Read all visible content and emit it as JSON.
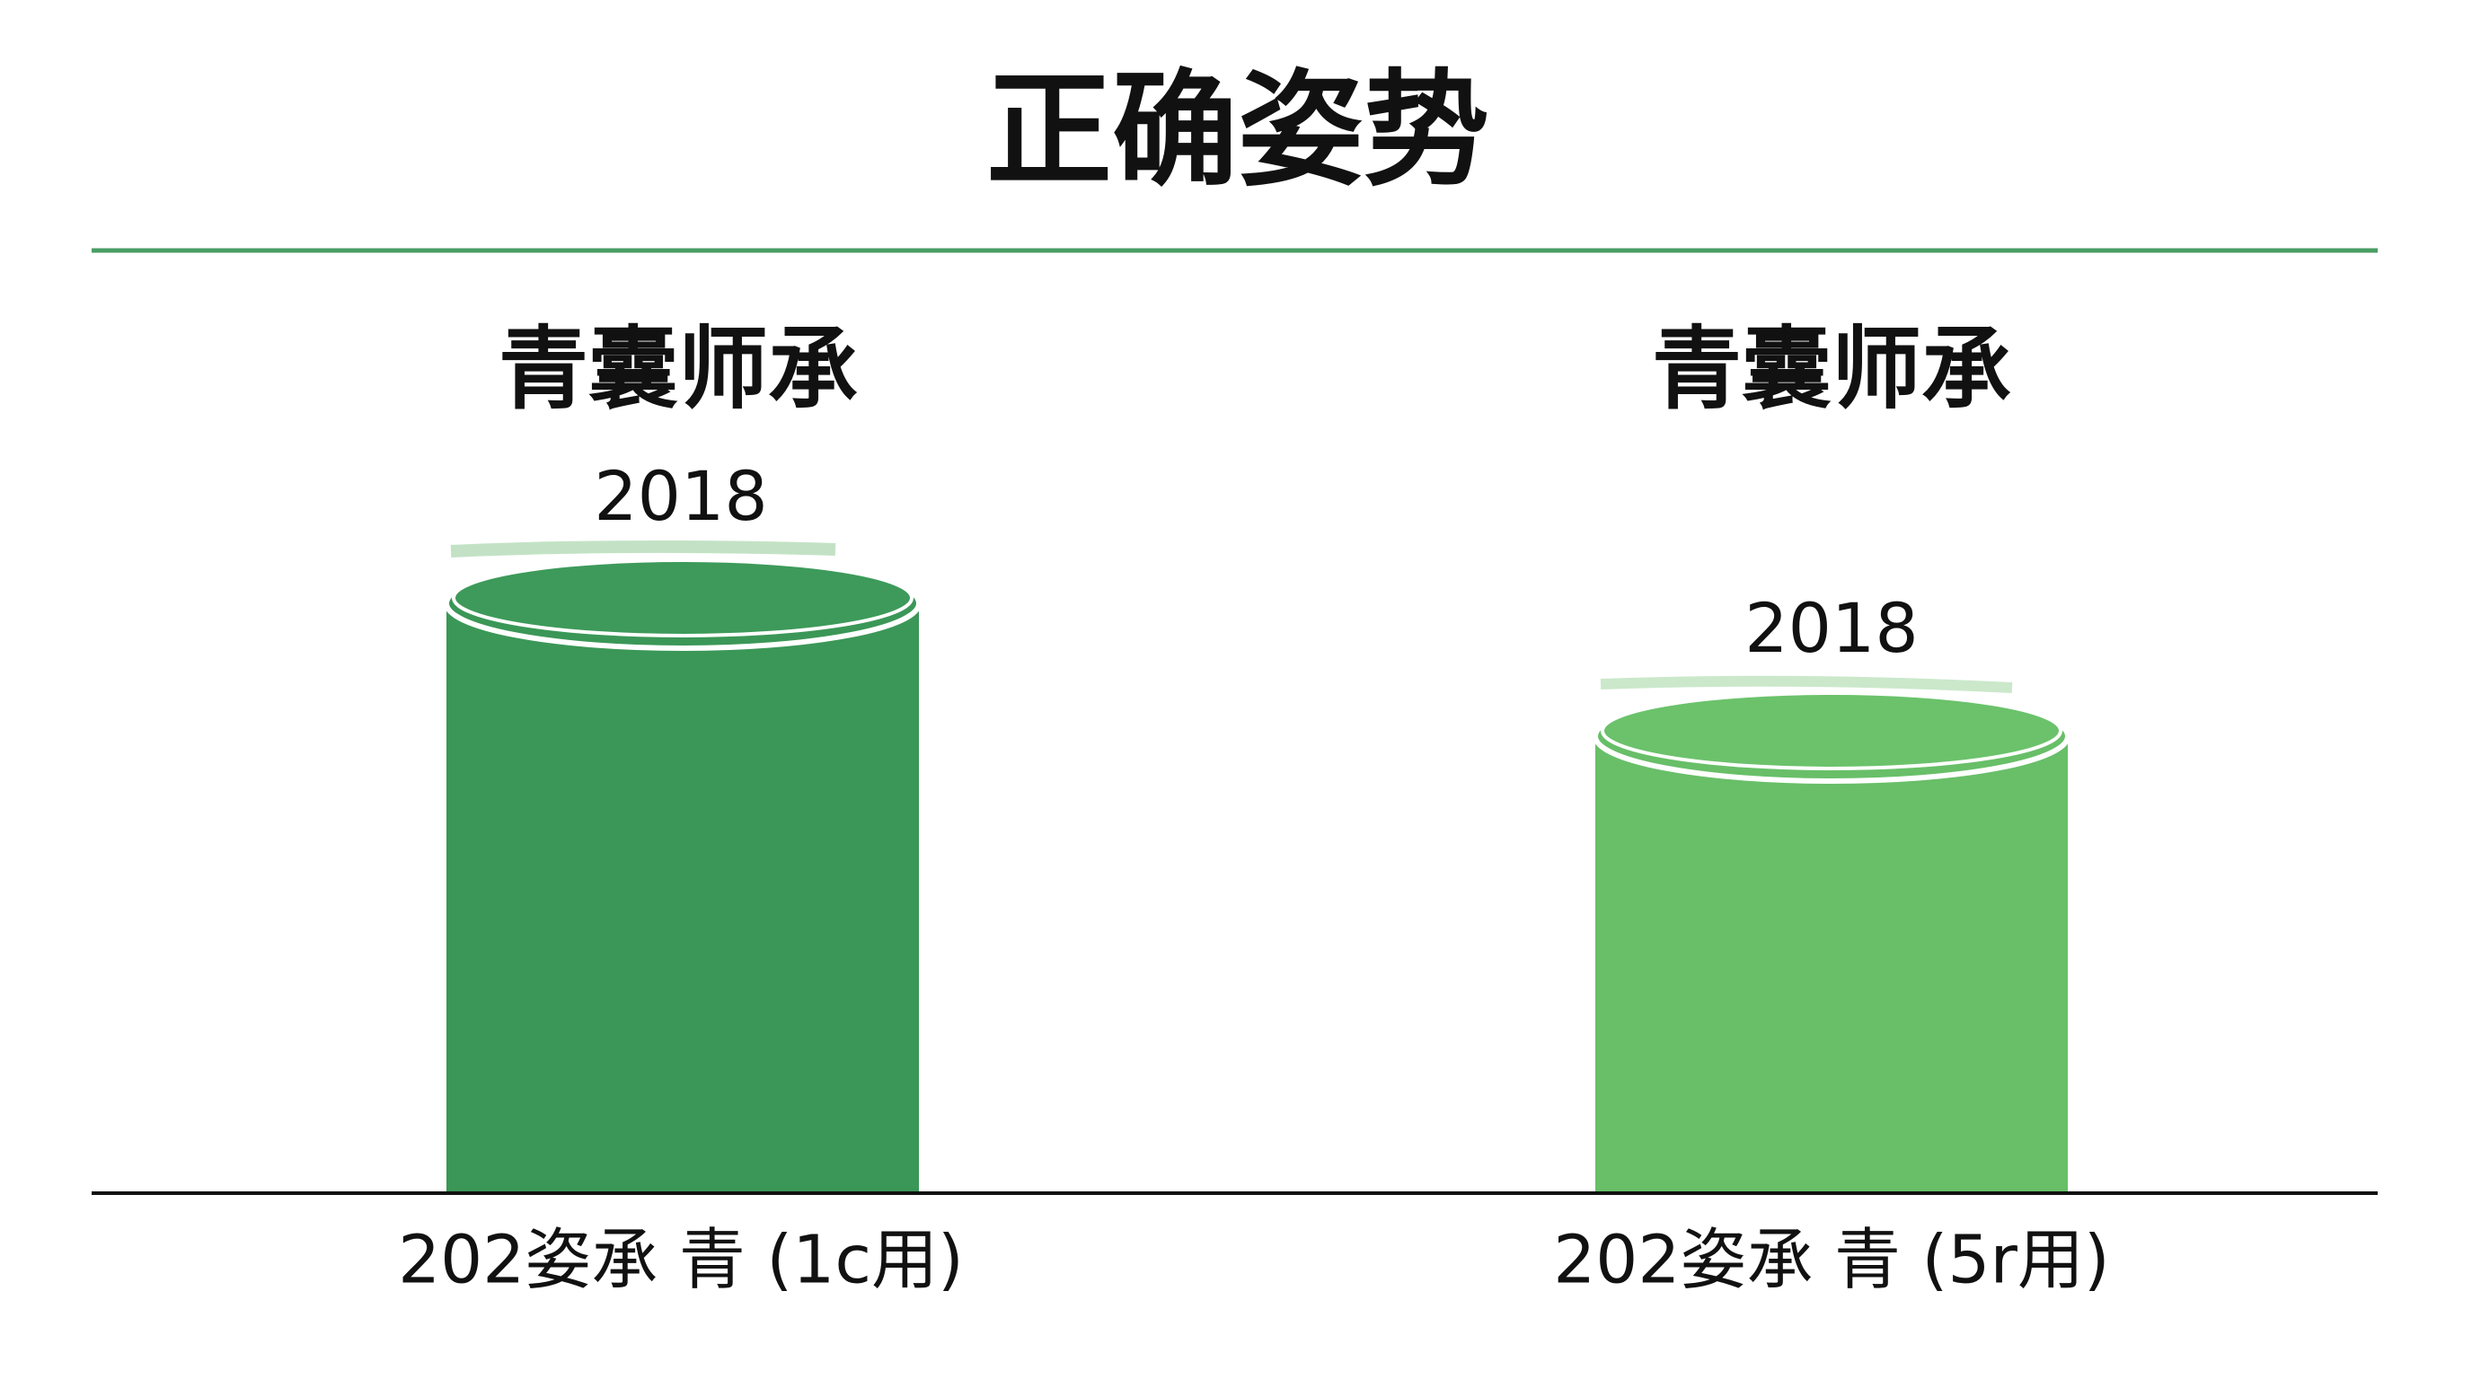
{
  "title": "正确姿势",
  "columns": [
    {
      "heading": "青囊师承",
      "label": "2018",
      "caption": "202姿承 青 (1c用)"
    },
    {
      "heading": "青囊师承",
      "label": "2018",
      "caption": "202姿承 青 (5r用)"
    }
  ]
}
